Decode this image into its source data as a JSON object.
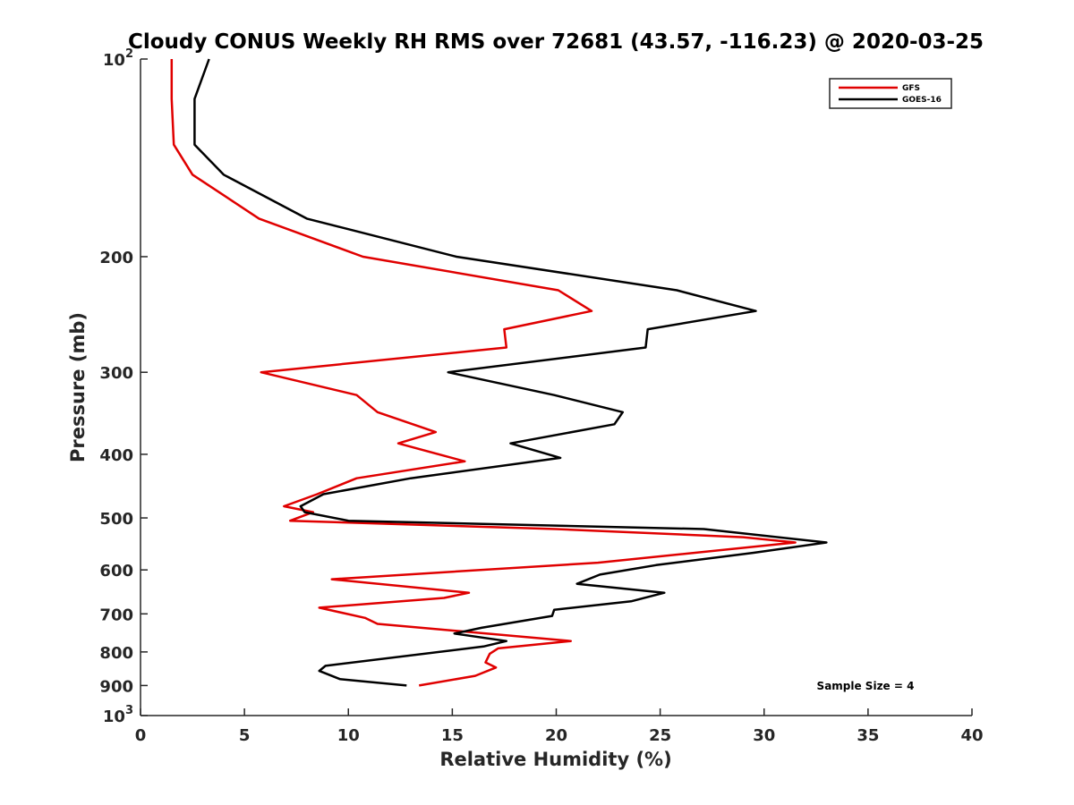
{
  "chart_data": {
    "type": "line",
    "title": "Cloudy CONUS Weekly RH RMS over 72681 (43.57, -116.23) @ 2020-03-25",
    "xlabel": "Relative Humidity (%)",
    "ylabel": "Pressure (mb)",
    "xlim": [
      0,
      40
    ],
    "ylim": [
      100,
      1000
    ],
    "y_scale": "log",
    "y_reversed": true,
    "x_ticks": [
      0,
      5,
      10,
      15,
      20,
      25,
      30,
      35,
      40
    ],
    "x_tick_labels": [
      "0",
      "5",
      "10",
      "15",
      "20",
      "25",
      "30",
      "35",
      "40"
    ],
    "y_ticks": [
      100,
      200,
      300,
      400,
      500,
      600,
      700,
      800,
      900,
      1000
    ],
    "y_tick_labels": [
      {
        "base": "10",
        "exp": "2"
      },
      {
        "base": "200",
        "exp": ""
      },
      {
        "base": "300",
        "exp": ""
      },
      {
        "base": "400",
        "exp": ""
      },
      {
        "base": "500",
        "exp": ""
      },
      {
        "base": "600",
        "exp": ""
      },
      {
        "base": "700",
        "exp": ""
      },
      {
        "base": "800",
        "exp": ""
      },
      {
        "base": "900",
        "exp": ""
      },
      {
        "base": "10",
        "exp": "3"
      }
    ],
    "grid": false,
    "legend_position": "top-right",
    "annotation": "Sample Size = 4",
    "series": [
      {
        "name": "GFS",
        "color": "#e00000",
        "points": [
          [
            1.5,
            100
          ],
          [
            1.5,
            115
          ],
          [
            1.6,
            135
          ],
          [
            2.5,
            150
          ],
          [
            5.7,
            175
          ],
          [
            10.7,
            200
          ],
          [
            20.1,
            225
          ],
          [
            21.7,
            242
          ],
          [
            17.5,
            258
          ],
          [
            17.6,
            275
          ],
          [
            5.8,
            300
          ],
          [
            10.4,
            325
          ],
          [
            11.4,
            345
          ],
          [
            14.2,
            370
          ],
          [
            12.4,
            385
          ],
          [
            15.6,
            410
          ],
          [
            10.4,
            435
          ],
          [
            8.5,
            460
          ],
          [
            6.9,
            480
          ],
          [
            8.3,
            490
          ],
          [
            7.2,
            505
          ],
          [
            20.0,
            520
          ],
          [
            29.0,
            535
          ],
          [
            31.5,
            545
          ],
          [
            22.0,
            585
          ],
          [
            9.2,
            620
          ],
          [
            15.8,
            650
          ],
          [
            14.6,
            662
          ],
          [
            8.6,
            685
          ],
          [
            10.8,
            710
          ],
          [
            11.4,
            725
          ],
          [
            20.7,
            770
          ],
          [
            17.2,
            790
          ],
          [
            16.8,
            805
          ],
          [
            16.6,
            830
          ],
          [
            17.1,
            845
          ],
          [
            16.1,
            870
          ],
          [
            13.4,
            900
          ]
        ]
      },
      {
        "name": "GOES-16",
        "color": "#000000",
        "points": [
          [
            3.3,
            100
          ],
          [
            2.6,
            115
          ],
          [
            2.6,
            135
          ],
          [
            4.0,
            150
          ],
          [
            8.0,
            175
          ],
          [
            15.2,
            200
          ],
          [
            25.8,
            225
          ],
          [
            29.6,
            242
          ],
          [
            24.4,
            258
          ],
          [
            24.3,
            275
          ],
          [
            14.8,
            300
          ],
          [
            19.9,
            325
          ],
          [
            23.2,
            345
          ],
          [
            22.8,
            360
          ],
          [
            17.8,
            385
          ],
          [
            20.2,
            405
          ],
          [
            13.0,
            435
          ],
          [
            8.8,
            460
          ],
          [
            7.7,
            480
          ],
          [
            7.9,
            490
          ],
          [
            10.0,
            505
          ],
          [
            27.1,
            520
          ],
          [
            33.0,
            545
          ],
          [
            29.5,
            565
          ],
          [
            24.8,
            590
          ],
          [
            22.1,
            610
          ],
          [
            21.0,
            630
          ],
          [
            25.2,
            650
          ],
          [
            23.6,
            670
          ],
          [
            19.9,
            690
          ],
          [
            19.8,
            705
          ],
          [
            16.4,
            735
          ],
          [
            15.1,
            750
          ],
          [
            17.6,
            770
          ],
          [
            16.5,
            785
          ],
          [
            8.9,
            840
          ],
          [
            8.6,
            855
          ],
          [
            9.6,
            880
          ],
          [
            12.8,
            900
          ]
        ]
      }
    ]
  }
}
